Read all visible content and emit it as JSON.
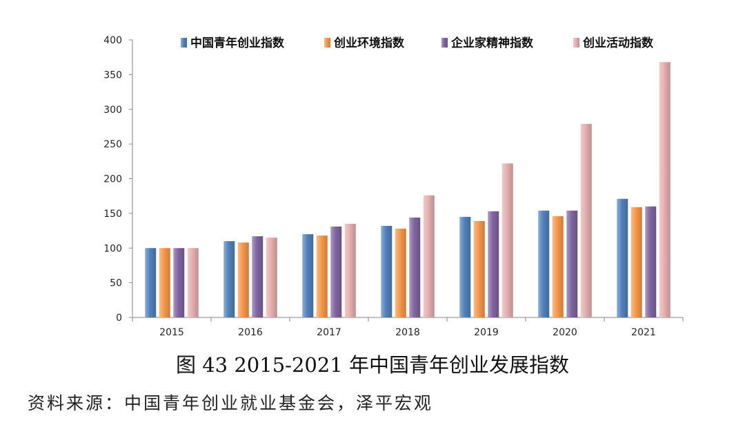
{
  "caption": "图 43 2015-2021 年中国青年创业发展指数",
  "source": "资料来源：中国青年创业就业基金会，泽平宏观",
  "colors": {
    "series": [
      "#4f81bd",
      "#f79646",
      "#8064a2",
      "#e6aeae"
    ],
    "axis": "#868686",
    "text": "#222222"
  },
  "chart_data": {
    "type": "bar",
    "title": "",
    "xlabel": "",
    "ylabel": "",
    "categories": [
      "2015",
      "2016",
      "2017",
      "2018",
      "2019",
      "2020",
      "2021"
    ],
    "ylim": [
      0,
      400
    ],
    "yticks": [
      0,
      50,
      100,
      150,
      200,
      250,
      300,
      350,
      400
    ],
    "grid": false,
    "legend_position": "top",
    "series": [
      {
        "name": "中国青年创业指数",
        "values": [
          100,
          110,
          120,
          132,
          145,
          154,
          171
        ]
      },
      {
        "name": "创业环境指数",
        "values": [
          100,
          108,
          118,
          128,
          139,
          146,
          159
        ]
      },
      {
        "name": "企业家精神指数",
        "values": [
          100,
          117,
          131,
          144,
          153,
          154,
          160
        ]
      },
      {
        "name": "创业活动指数",
        "values": [
          100,
          115,
          135,
          176,
          222,
          279,
          368
        ]
      }
    ]
  }
}
